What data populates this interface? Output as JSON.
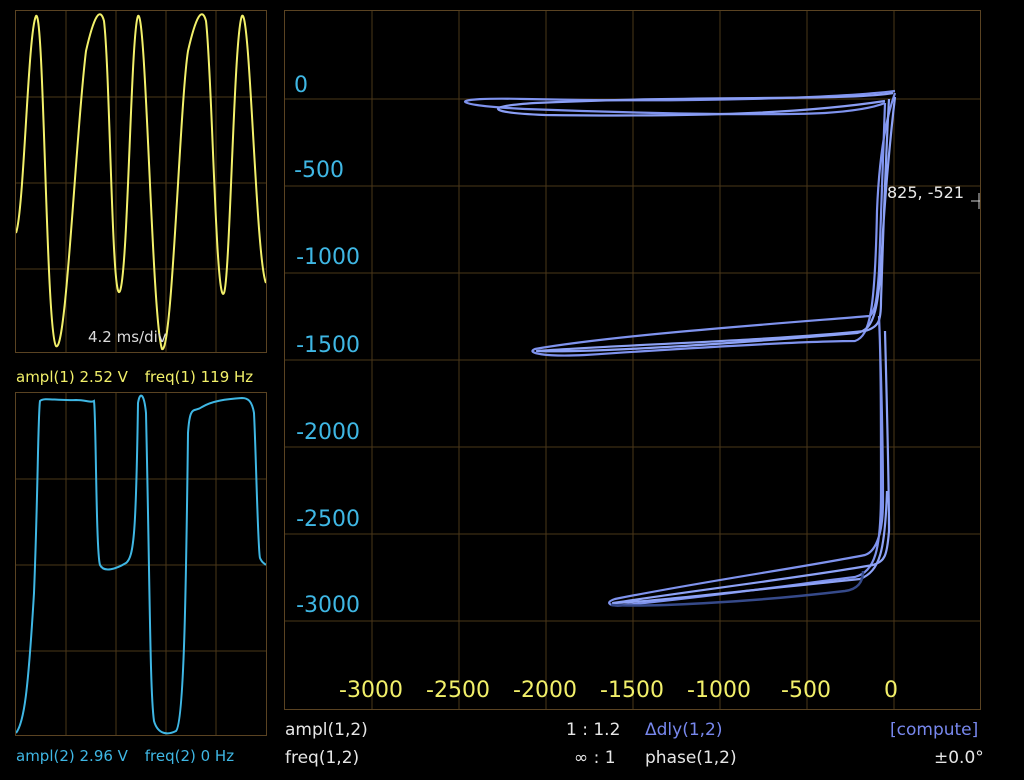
{
  "ch1": {
    "time_per_div": "4.2 ms/div",
    "ampl": "ampl(1) 2.52 V",
    "freq": "freq(1) 119 Hz",
    "color": "#f2f06a"
  },
  "ch2": {
    "ampl": "ampl(2) 2.96 V",
    "freq": "freq(2) 0 Hz",
    "color": "#3fb7e4"
  },
  "xy": {
    "trace_color": "#7f93ee",
    "grid_color": "#5a4322",
    "y_ticks": [
      "0",
      "-500",
      "-1000",
      "-1500",
      "-2000",
      "-2500",
      "-3000"
    ],
    "x_ticks": [
      "-3000",
      "-2500",
      "-2000",
      "-1500",
      "-1000",
      "-500",
      "0"
    ],
    "cursor": "825, -521"
  },
  "stats": {
    "ampl_label": "ampl(1,2)",
    "ampl_ratio": "1 : 1.2",
    "dly_label": "Δdly(1,2)",
    "compute_label": "[compute]",
    "freq_label": "freq(1,2)",
    "freq_ratio": "∞ : 1",
    "phase_label": "phase(1,2)",
    "phase_value": "±0.0°"
  }
}
